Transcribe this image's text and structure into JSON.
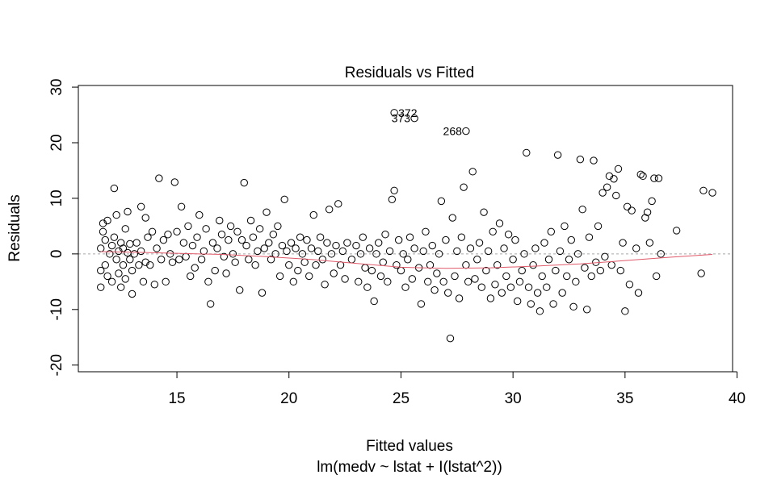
{
  "chart_data": {
    "type": "scatter",
    "title": "Residuals vs Fitted",
    "xlabel": "Fitted values",
    "ylabel": "Residuals",
    "subtitle": "lm(medv ~ lstat + I(lstat^2))",
    "xlim": [
      10.6,
      39.8
    ],
    "ylim": [
      -21.2,
      30.3
    ],
    "xticks": [
      15,
      20,
      25,
      30,
      35,
      40
    ],
    "yticks": [
      -20,
      -10,
      0,
      10,
      20,
      30
    ],
    "reference_line_y": 0,
    "colors": {
      "points": "#000000",
      "smooth": "#e05a6a",
      "reference": "#a8a8a8"
    },
    "labeled_points": [
      {
        "label": "372",
        "x": 24.7,
        "y": 25.4
      },
      {
        "label": "373",
        "x": 25.6,
        "y": 24.4
      },
      {
        "label": "268",
        "x": 27.9,
        "y": 22.1
      }
    ],
    "smooth": {
      "x": [
        11.6,
        13,
        15,
        17,
        19,
        21,
        23,
        25,
        27,
        29,
        31,
        33,
        35,
        37,
        38.9
      ],
      "y": [
        0.4,
        0.3,
        0.1,
        -0.1,
        -0.5,
        -1.0,
        -1.7,
        -2.4,
        -2.6,
        -2.5,
        -2.2,
        -1.8,
        -1.2,
        -0.6,
        -0.1
      ]
    },
    "points": [
      [
        11.6,
        -6
      ],
      [
        11.6,
        -3
      ],
      [
        11.6,
        1
      ],
      [
        11.7,
        4
      ],
      [
        11.7,
        5.5
      ],
      [
        11.8,
        -2
      ],
      [
        11.8,
        2.5
      ],
      [
        11.9,
        6
      ],
      [
        11.9,
        -4
      ],
      [
        12.0,
        0
      ],
      [
        12.1,
        -5
      ],
      [
        12.1,
        1.5
      ],
      [
        12.2,
        11.8
      ],
      [
        12.2,
        3
      ],
      [
        12.3,
        -1
      ],
      [
        12.3,
        7
      ],
      [
        12.4,
        -3.5
      ],
      [
        12.4,
        0.5
      ],
      [
        12.5,
        2
      ],
      [
        12.5,
        -6
      ],
      [
        12.6,
        1
      ],
      [
        12.6,
        -2
      ],
      [
        12.7,
        4.5
      ],
      [
        12.7,
        -4.5
      ],
      [
        12.8,
        0.2
      ],
      [
        12.8,
        7.6
      ],
      [
        12.9,
        -1
      ],
      [
        12.9,
        1.8
      ],
      [
        13.0,
        -7.2
      ],
      [
        13.0,
        -3
      ],
      [
        13.1,
        0
      ],
      [
        13.2,
        2
      ],
      [
        13.3,
        -2
      ],
      [
        13.4,
        8.5
      ],
      [
        13.4,
        0.5
      ],
      [
        13.5,
        -5
      ],
      [
        13.6,
        6.5
      ],
      [
        13.6,
        -1.5
      ],
      [
        13.7,
        3
      ],
      [
        13.8,
        -2
      ],
      [
        13.9,
        4
      ],
      [
        14.0,
        -5.5
      ],
      [
        14.1,
        1
      ],
      [
        14.2,
        13.6
      ],
      [
        14.3,
        -1
      ],
      [
        14.4,
        2.5
      ],
      [
        14.5,
        -5
      ],
      [
        14.6,
        3.5
      ],
      [
        14.7,
        0
      ],
      [
        14.8,
        -1.5
      ],
      [
        14.9,
        12.9
      ],
      [
        15.0,
        4
      ],
      [
        15.1,
        -1
      ],
      [
        15.2,
        8.5
      ],
      [
        15.3,
        2
      ],
      [
        15.4,
        -0.5
      ],
      [
        15.5,
        5
      ],
      [
        15.6,
        -4
      ],
      [
        15.7,
        1.5
      ],
      [
        15.8,
        -2.5
      ],
      [
        15.9,
        3
      ],
      [
        16.0,
        7
      ],
      [
        16.1,
        -1
      ],
      [
        16.2,
        0.5
      ],
      [
        16.3,
        4.5
      ],
      [
        16.4,
        -5
      ],
      [
        16.5,
        -9
      ],
      [
        16.6,
        2
      ],
      [
        16.7,
        -3
      ],
      [
        16.8,
        1
      ],
      [
        16.9,
        6
      ],
      [
        17.0,
        3.5
      ],
      [
        17.1,
        -0.5
      ],
      [
        17.2,
        -3.5
      ],
      [
        17.3,
        2.5
      ],
      [
        17.4,
        5
      ],
      [
        17.5,
        0
      ],
      [
        17.6,
        -1.5
      ],
      [
        17.7,
        4
      ],
      [
        17.8,
        -6.5
      ],
      [
        17.9,
        2.5
      ],
      [
        18.0,
        12.8
      ],
      [
        18.1,
        1.5
      ],
      [
        18.2,
        -1
      ],
      [
        18.3,
        6
      ],
      [
        18.4,
        3
      ],
      [
        18.5,
        -2
      ],
      [
        18.6,
        0.5
      ],
      [
        18.7,
        4.5
      ],
      [
        18.8,
        -7
      ],
      [
        18.9,
        1
      ],
      [
        19.0,
        7.5
      ],
      [
        19.1,
        2
      ],
      [
        19.2,
        -1
      ],
      [
        19.3,
        3.5
      ],
      [
        19.4,
        0
      ],
      [
        19.5,
        5
      ],
      [
        19.6,
        -4
      ],
      [
        19.7,
        1.5
      ],
      [
        19.8,
        9.8
      ],
      [
        19.9,
        0.5
      ],
      [
        20.0,
        -2
      ],
      [
        20.1,
        2
      ],
      [
        20.2,
        -5
      ],
      [
        20.3,
        1
      ],
      [
        20.4,
        -3
      ],
      [
        20.5,
        3
      ],
      [
        20.6,
        0
      ],
      [
        20.7,
        -1.5
      ],
      [
        20.8,
        2.5
      ],
      [
        20.9,
        -4
      ],
      [
        21.0,
        1
      ],
      [
        21.1,
        7
      ],
      [
        21.2,
        -2
      ],
      [
        21.3,
        0.5
      ],
      [
        21.4,
        3
      ],
      [
        21.5,
        -1
      ],
      [
        21.6,
        -5.5
      ],
      [
        21.7,
        2
      ],
      [
        21.8,
        8
      ],
      [
        21.9,
        0
      ],
      [
        22.0,
        -3.5
      ],
      [
        22.1,
        1.5
      ],
      [
        22.2,
        9
      ],
      [
        22.3,
        -2
      ],
      [
        22.4,
        0.5
      ],
      [
        22.5,
        -4.5
      ],
      [
        22.6,
        2
      ],
      [
        22.8,
        -1
      ],
      [
        23.0,
        1.5
      ],
      [
        23.1,
        -5
      ],
      [
        23.2,
        0
      ],
      [
        23.3,
        3
      ],
      [
        23.4,
        -2.5
      ],
      [
        23.5,
        -6
      ],
      [
        23.6,
        1
      ],
      [
        23.7,
        -3
      ],
      [
        23.8,
        -8.5
      ],
      [
        23.9,
        0
      ],
      [
        24.0,
        2
      ],
      [
        24.1,
        -4
      ],
      [
        24.2,
        -1.5
      ],
      [
        24.3,
        3.5
      ],
      [
        24.4,
        -5
      ],
      [
        24.5,
        0.5
      ],
      [
        24.6,
        9.8
      ],
      [
        24.7,
        11.4
      ],
      [
        24.8,
        -2
      ],
      [
        24.9,
        2.5
      ],
      [
        25.0,
        -3
      ],
      [
        25.1,
        0
      ],
      [
        25.2,
        -6
      ],
      [
        25.3,
        -1
      ],
      [
        25.4,
        3
      ],
      [
        25.5,
        -4.5
      ],
      [
        25.6,
        1
      ],
      [
        25.8,
        -2.5
      ],
      [
        25.9,
        -9
      ],
      [
        26.0,
        0.5
      ],
      [
        26.1,
        4
      ],
      [
        26.2,
        -5
      ],
      [
        26.3,
        -2
      ],
      [
        26.4,
        1.5
      ],
      [
        26.5,
        -6.5
      ],
      [
        26.6,
        -3.5
      ],
      [
        26.7,
        0
      ],
      [
        26.8,
        9.5
      ],
      [
        26.9,
        -5
      ],
      [
        27.0,
        2.5
      ],
      [
        27.1,
        -7
      ],
      [
        27.2,
        -15.2
      ],
      [
        27.3,
        6.5
      ],
      [
        27.4,
        -4
      ],
      [
        27.5,
        0.5
      ],
      [
        27.6,
        -8
      ],
      [
        27.7,
        3
      ],
      [
        27.8,
        12
      ],
      [
        27.9,
        -2
      ],
      [
        28.0,
        -5
      ],
      [
        28.1,
        1
      ],
      [
        28.2,
        14.8
      ],
      [
        28.3,
        -4.5
      ],
      [
        28.4,
        -1
      ],
      [
        28.5,
        2
      ],
      [
        28.6,
        -6
      ],
      [
        28.7,
        7.5
      ],
      [
        28.8,
        -3
      ],
      [
        28.9,
        0.5
      ],
      [
        29.0,
        -8
      ],
      [
        29.1,
        4
      ],
      [
        29.2,
        -5.5
      ],
      [
        29.3,
        -2
      ],
      [
        29.4,
        5.5
      ],
      [
        29.5,
        -7
      ],
      [
        29.6,
        1
      ],
      [
        29.7,
        -4
      ],
      [
        29.8,
        3.5
      ],
      [
        29.9,
        -6
      ],
      [
        30.0,
        -1
      ],
      [
        30.1,
        2.5
      ],
      [
        30.2,
        -8.5
      ],
      [
        30.3,
        -5
      ],
      [
        30.4,
        -3
      ],
      [
        30.5,
        0
      ],
      [
        30.6,
        18.2
      ],
      [
        30.7,
        -6
      ],
      [
        30.8,
        -9
      ],
      [
        30.9,
        -2
      ],
      [
        31.0,
        1
      ],
      [
        31.1,
        -7
      ],
      [
        31.2,
        -10.3
      ],
      [
        31.3,
        -4
      ],
      [
        31.4,
        2
      ],
      [
        31.5,
        -6
      ],
      [
        31.6,
        -1
      ],
      [
        31.7,
        4
      ],
      [
        31.8,
        -9
      ],
      [
        31.9,
        -3
      ],
      [
        32.0,
        17.8
      ],
      [
        32.1,
        0.5
      ],
      [
        32.2,
        -7
      ],
      [
        32.3,
        5
      ],
      [
        32.4,
        -4
      ],
      [
        32.5,
        -1
      ],
      [
        32.6,
        2.5
      ],
      [
        32.7,
        -9.5
      ],
      [
        32.8,
        -5
      ],
      [
        32.9,
        0
      ],
      [
        33.0,
        17
      ],
      [
        33.1,
        8
      ],
      [
        33.2,
        -2.5
      ],
      [
        33.3,
        -10
      ],
      [
        33.4,
        3
      ],
      [
        33.5,
        -4
      ],
      [
        33.6,
        16.8
      ],
      [
        33.7,
        -1.5
      ],
      [
        33.8,
        5
      ],
      [
        33.9,
        -3
      ],
      [
        34.0,
        11
      ],
      [
        34.1,
        -0.5
      ],
      [
        34.2,
        12
      ],
      [
        34.3,
        14
      ],
      [
        34.4,
        -2
      ],
      [
        34.5,
        13.5
      ],
      [
        34.6,
        10.5
      ],
      [
        34.7,
        15.3
      ],
      [
        34.8,
        -3
      ],
      [
        34.9,
        2
      ],
      [
        35.0,
        -10.3
      ],
      [
        35.1,
        8.5
      ],
      [
        35.2,
        -5.5
      ],
      [
        35.3,
        7.8
      ],
      [
        35.5,
        1
      ],
      [
        35.6,
        -7
      ],
      [
        35.7,
        14.3
      ],
      [
        35.8,
        14
      ],
      [
        35.9,
        6.5
      ],
      [
        36.0,
        7.5
      ],
      [
        36.1,
        2
      ],
      [
        36.2,
        9.5
      ],
      [
        36.3,
        13.6
      ],
      [
        36.4,
        -4
      ],
      [
        36.5,
        13.6
      ],
      [
        36.6,
        0
      ],
      [
        37.3,
        4.2
      ],
      [
        38.4,
        -3.5
      ],
      [
        38.5,
        11.4
      ],
      [
        38.9,
        11
      ]
    ]
  }
}
